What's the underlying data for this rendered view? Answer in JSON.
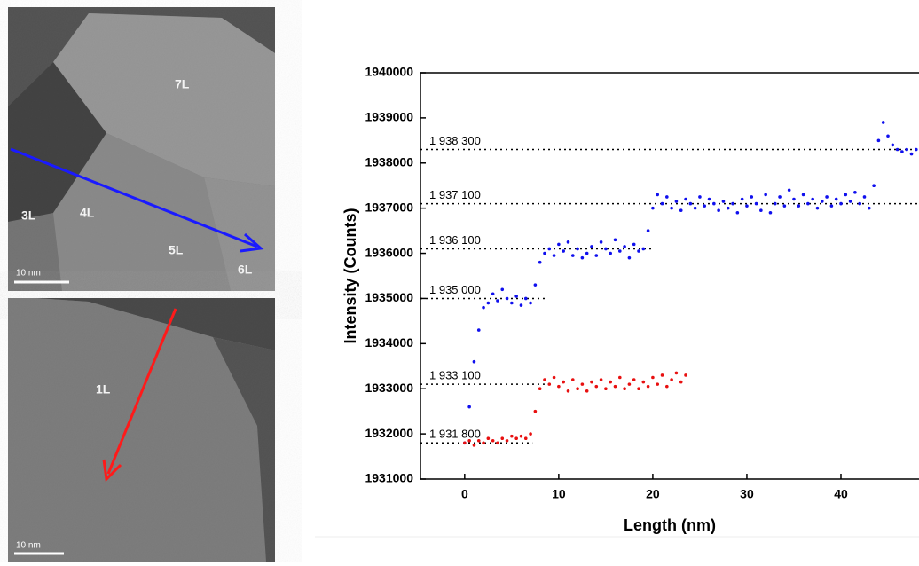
{
  "images": {
    "top": {
      "labels": [
        "7L",
        "3L",
        "4L",
        "5L",
        "6L"
      ],
      "scale_bar": "10 nm"
    },
    "bottom": {
      "labels": [
        "1L"
      ],
      "scale_bar": "10 nm"
    }
  },
  "chart_data": {
    "type": "scatter",
    "xlabel": "Length (nm)",
    "ylabel": "Intensity (Counts)",
    "xlim": [
      -4.7,
      48.3
    ],
    "ylim": [
      1931000,
      1940000
    ],
    "xticks": [
      0,
      10,
      20,
      30,
      40
    ],
    "yticks": [
      1931000,
      1932000,
      1933000,
      1934000,
      1935000,
      1936000,
      1937000,
      1938000,
      1939000,
      1940000
    ],
    "reference_lines": [
      {
        "value": 1938300,
        "label": "1 938 300",
        "x_end": 48.3
      },
      {
        "value": 1937100,
        "label": "1 937 100",
        "x_end": 48.3
      },
      {
        "value": 1936100,
        "label": "1 936 100",
        "x_end": 20
      },
      {
        "value": 1935000,
        "label": "1 935 000",
        "x_end": 8.5
      },
      {
        "value": 1933100,
        "label": "1 933 100",
        "x_end": 8.5
      },
      {
        "value": 1931800,
        "label": "1 931 800",
        "x_end": 7.2
      }
    ],
    "series": [
      {
        "color": "#1010ee",
        "x": [
          0,
          0.5,
          1,
          1.5,
          2,
          2.5,
          3,
          3.5,
          4,
          4.5,
          5,
          5.5,
          6,
          6.5,
          7,
          7.5,
          8,
          8.5,
          9,
          9.5,
          10,
          10.5,
          11,
          11.5,
          12,
          12.5,
          13,
          13.5,
          14,
          14.5,
          15,
          15.5,
          16,
          16.5,
          17,
          17.5,
          18,
          18.5,
          19,
          19.5,
          20,
          20.5,
          21,
          21.5,
          22,
          22.5,
          23,
          23.5,
          24,
          24.5,
          25,
          25.5,
          26,
          26.5,
          27,
          27.5,
          28,
          28.5,
          29,
          29.5,
          30,
          30.5,
          31,
          31.5,
          32,
          32.5,
          33,
          33.5,
          34,
          34.5,
          35,
          35.5,
          36,
          36.5,
          37,
          37.5,
          38,
          38.5,
          39,
          39.5,
          40,
          40.5,
          41,
          41.5,
          42,
          42.5,
          43,
          43.5,
          44,
          44.5,
          45,
          45.5,
          46,
          46.5,
          47,
          47.5,
          48
        ],
        "values": [
          1931800,
          1932600,
          1933600,
          1934300,
          1934800,
          1934900,
          1935100,
          1934950,
          1935200,
          1935000,
          1934900,
          1935050,
          1934850,
          1935000,
          1934900,
          1935300,
          1935800,
          1936000,
          1936100,
          1935950,
          1936200,
          1936050,
          1936250,
          1935950,
          1936100,
          1935900,
          1936000,
          1936150,
          1935950,
          1936250,
          1936100,
          1936000,
          1936300,
          1936050,
          1936150,
          1935900,
          1936200,
          1936050,
          1936100,
          1936500,
          1937000,
          1937300,
          1937100,
          1937250,
          1937000,
          1937150,
          1936950,
          1937200,
          1937100,
          1937000,
          1937250,
          1937050,
          1937200,
          1937100,
          1936950,
          1937150,
          1937000,
          1937100,
          1936900,
          1937200,
          1937050,
          1937250,
          1937100,
          1936950,
          1937300,
          1936900,
          1937100,
          1937250,
          1937050,
          1937400,
          1937200,
          1937050,
          1937300,
          1937100,
          1937200,
          1937000,
          1937150,
          1937250,
          1937050,
          1937200,
          1937100,
          1937300,
          1937150,
          1937350,
          1937100,
          1937250,
          1937000,
          1937500,
          1938500,
          1938900,
          1938600,
          1938400,
          1938300,
          1938250,
          1938300,
          1938200,
          1938300
        ]
      },
      {
        "color": "#e81010",
        "x": [
          0,
          0.5,
          1,
          1.5,
          2,
          2.5,
          3,
          3.5,
          4,
          4.5,
          5,
          5.5,
          6,
          6.5,
          7,
          7.5,
          8,
          8.5,
          9,
          9.5,
          10,
          10.5,
          11,
          11.5,
          12,
          12.5,
          13,
          13.5,
          14,
          14.5,
          15,
          15.5,
          16,
          16.5,
          17,
          17.5,
          18,
          18.5,
          19,
          19.5,
          20,
          20.5,
          21,
          21.5,
          22,
          22.5,
          23,
          23.5
        ],
        "values": [
          1931800,
          1931850,
          1931750,
          1931850,
          1931800,
          1931900,
          1931850,
          1931800,
          1931900,
          1931850,
          1931950,
          1931900,
          1931950,
          1931900,
          1932000,
          1932500,
          1933000,
          1933200,
          1933100,
          1933250,
          1933050,
          1933150,
          1932950,
          1933200,
          1933000,
          1933100,
          1932950,
          1933150,
          1933050,
          1933200,
          1933000,
          1933150,
          1933050,
          1933250,
          1933000,
          1933100,
          1933200,
          1933000,
          1933150,
          1933050,
          1933250,
          1933100,
          1933300,
          1933050,
          1933200,
          1933350,
          1933150,
          1933300
        ]
      }
    ]
  }
}
